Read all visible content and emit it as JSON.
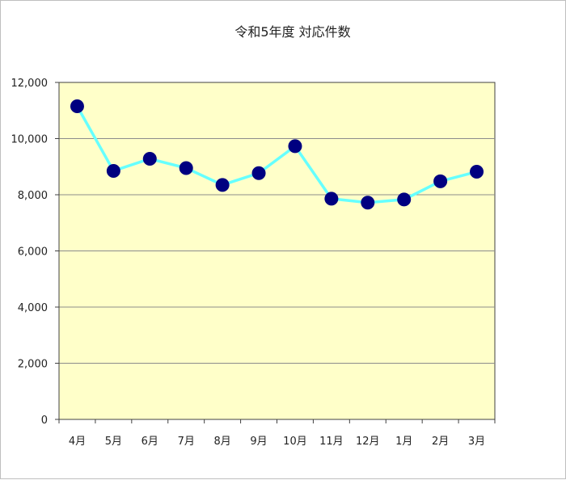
{
  "chart_data": {
    "type": "line",
    "title": "令和5年度 対応件数",
    "xlabel": "",
    "ylabel": "",
    "categories": [
      "4月",
      "5月",
      "6月",
      "7月",
      "8月",
      "9月",
      "10月",
      "11月",
      "12月",
      "1月",
      "2月",
      "3月"
    ],
    "series": [
      {
        "values": [
          11150,
          8850,
          9280,
          8950,
          8350,
          8770,
          9730,
          7860,
          7720,
          7830,
          8480,
          8820
        ]
      }
    ],
    "ylim": [
      0,
      12000
    ],
    "yticks": [
      0,
      2000,
      4000,
      6000,
      8000,
      10000,
      12000
    ],
    "ytick_labels": [
      "0",
      "2,000",
      "4,000",
      "6,000",
      "8,000",
      "10,000",
      "12,000"
    ],
    "grid": true,
    "legend": "none",
    "colors": {
      "plot_background": "#ffffc9",
      "line": "#66ffff",
      "marker": "#000080",
      "grid": "#8c8c8c",
      "axis": "#404040"
    }
  }
}
